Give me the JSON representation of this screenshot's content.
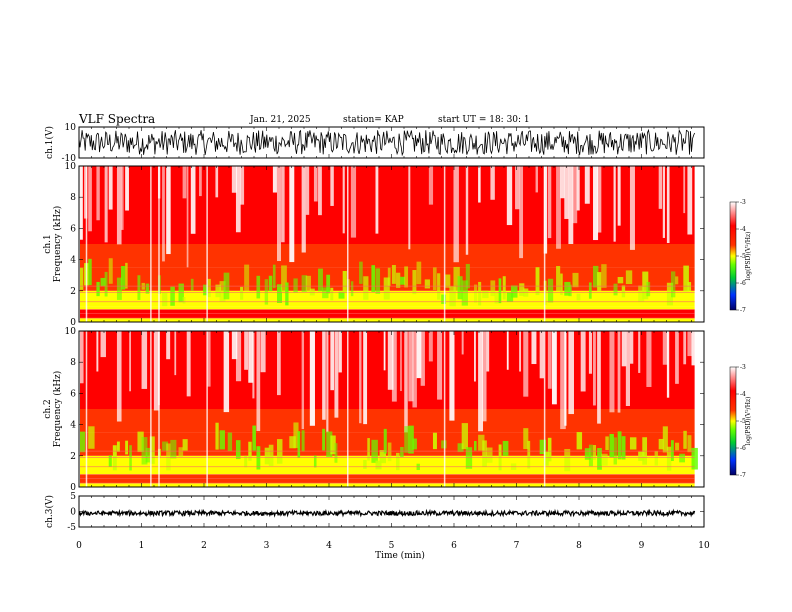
{
  "header": {
    "title": "VLF Spectra",
    "date": "Jan. 21, 2025",
    "station": "station= KAP",
    "start": "start  UT =   18: 30: 1"
  },
  "colors": {
    "colorbar_stops": [
      "#000066",
      "#0033ff",
      "#00cc33",
      "#66ff00",
      "#ffff00",
      "#ff3300",
      "#ff0000",
      "#ffffff"
    ],
    "waveform": "#000000",
    "background": "#ffffff"
  },
  "chart_data": [
    {
      "type": "line",
      "name": "ch1-waveform",
      "ylabel": "ch.1(V)",
      "ylim": [
        -10,
        10
      ],
      "yticks": [
        "10",
        "-10"
      ],
      "xlim": [
        0,
        10
      ],
      "amplitude_range": [
        -8,
        8
      ],
      "mean": -2.5
    },
    {
      "type": "heatmap",
      "name": "ch1-spectrogram",
      "ylabel": [
        "ch.1",
        "Frequency  (kHz)"
      ],
      "ylim": [
        0,
        10
      ],
      "yticks": [
        "0",
        "2",
        "4",
        "6",
        "8",
        "10"
      ],
      "xlim": [
        0,
        10
      ],
      "data_end_min": 9.85,
      "colorbar": {
        "label": "log(PSD)(V²/Hz)",
        "range": [
          -7,
          -3
        ],
        "ticks": [
          "-3",
          "-4",
          "-5",
          "-6",
          "-7"
        ]
      },
      "bands_khz": [
        {
          "from": 0.0,
          "to": 0.25,
          "level": -4.6
        },
        {
          "from": 0.25,
          "to": 0.8,
          "level": -3.8
        },
        {
          "from": 0.8,
          "to": 1.0,
          "level": -5.0
        },
        {
          "from": 1.0,
          "to": 2.0,
          "level": -4.6
        },
        {
          "from": 2.0,
          "to": 3.5,
          "level": -4.3
        },
        {
          "from": 3.5,
          "to": 5.0,
          "level": -3.9
        },
        {
          "from": 5.0,
          "to": 10.0,
          "level": -3.4
        }
      ]
    },
    {
      "type": "heatmap",
      "name": "ch2-spectrogram",
      "ylabel": [
        "ch.2",
        "Frequency  (kHz)"
      ],
      "ylim": [
        0,
        10
      ],
      "yticks": [
        "0",
        "2",
        "4",
        "6",
        "8",
        "10"
      ],
      "xlim": [
        0,
        10
      ],
      "data_end_min": 9.85,
      "colorbar": {
        "label": "log(PSD)(V²/Hz)",
        "range": [
          -7,
          -3
        ],
        "ticks": [
          "-3",
          "-4",
          "-5",
          "-6",
          "-7"
        ]
      },
      "bands_khz": [
        {
          "from": 0.0,
          "to": 0.25,
          "level": -4.5
        },
        {
          "from": 0.25,
          "to": 0.8,
          "level": -3.9
        },
        {
          "from": 0.8,
          "to": 2.0,
          "level": -4.7
        },
        {
          "from": 2.0,
          "to": 3.5,
          "level": -4.3
        },
        {
          "from": 3.5,
          "to": 5.0,
          "level": -3.9
        },
        {
          "from": 5.0,
          "to": 10.0,
          "level": -3.4
        }
      ]
    },
    {
      "type": "line",
      "name": "ch3-waveform",
      "ylabel": "ch.3(V)",
      "ylim": [
        -5,
        5
      ],
      "yticks": [
        "5",
        "0",
        "-5"
      ],
      "xlim": [
        0,
        10
      ],
      "amplitude_range": [
        -1.3,
        0.2
      ],
      "mean": -0.6
    }
  ],
  "xaxis": {
    "label": "Time  (min)",
    "ticks": [
      "0",
      "1",
      "2",
      "3",
      "4",
      "5",
      "6",
      "7",
      "8",
      "9",
      "10"
    ]
  }
}
